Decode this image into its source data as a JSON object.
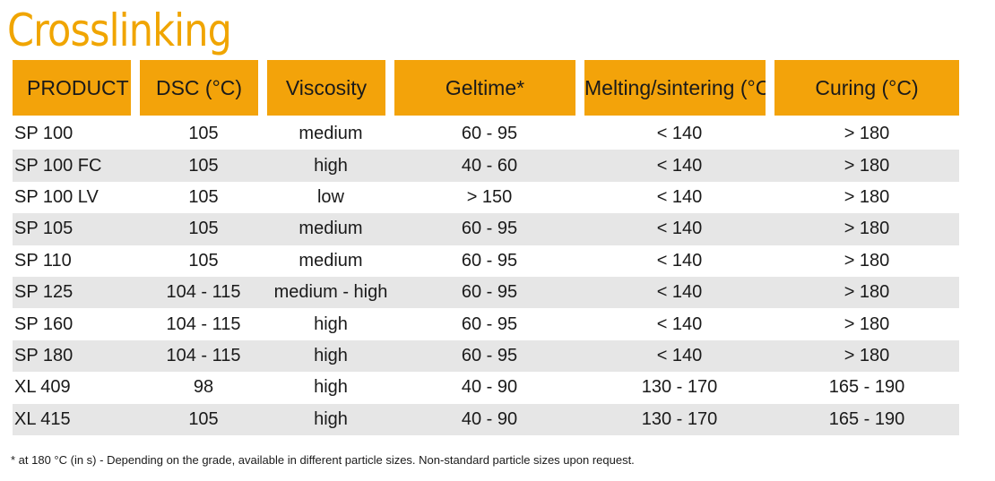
{
  "title": "Crosslinking",
  "headers": [
    "PRODUCT",
    "DSC (°C)",
    "Viscosity",
    "Geltime*",
    "Melting/sintering (°C)",
    "Curing (°C)"
  ],
  "rows": [
    [
      "SP 100",
      "105",
      "medium",
      "60 - 95",
      "< 140",
      "> 180"
    ],
    [
      "SP 100 FC",
      "105",
      "high",
      "40 - 60",
      "< 140",
      "> 180"
    ],
    [
      "SP 100 LV",
      "105",
      "low",
      "> 150",
      "< 140",
      "> 180"
    ],
    [
      "SP 105",
      "105",
      "medium",
      "60 - 95",
      "< 140",
      "> 180"
    ],
    [
      "SP 110",
      "105",
      "medium",
      "60 - 95",
      "< 140",
      "> 180"
    ],
    [
      "SP 125",
      "104 - 115",
      "medium - high",
      "60 - 95",
      "< 140",
      "> 180"
    ],
    [
      "SP 160",
      "104 - 115",
      "high",
      "60 - 95",
      "< 140",
      "> 180"
    ],
    [
      "SP 180",
      "104 - 115",
      "high",
      "60 - 95",
      "< 140",
      "> 180"
    ],
    [
      "XL 409",
      "98",
      "high",
      "40 - 90",
      "130 - 170",
      "165 - 190"
    ],
    [
      "XL 415",
      "105",
      "high",
      "40 - 90",
      "130 - 170",
      "165 - 190"
    ]
  ],
  "footnote": "* at 180 °C (in s)   -   Depending on the grade, available in different particle sizes. Non-standard particle sizes upon request.",
  "colors": {
    "title": "#f0a500",
    "header_bg": "#f3a30a",
    "stripe_bg": "#e6e6e6"
  }
}
